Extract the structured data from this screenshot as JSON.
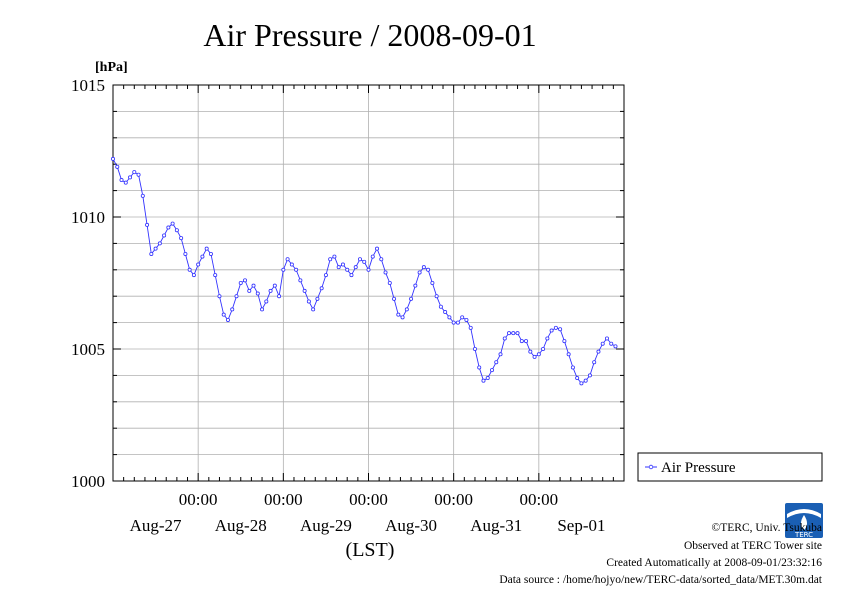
{
  "chart_data": {
    "type": "line",
    "title": "Air Pressure / 2008-09-01",
    "ylabel": "[hPa]",
    "xlabel": "(LST)",
    "ylim": [
      1000,
      1015
    ],
    "xlim": [
      0,
      6
    ],
    "yticks": [
      1000,
      1005,
      1010,
      1015
    ],
    "ytick_labels": [
      "1000",
      "1005",
      "1010",
      "1015"
    ],
    "x_minor_ticks": [
      1,
      2,
      3,
      4,
      5
    ],
    "x_minor_labels": [
      "00:00",
      "00:00",
      "00:00",
      "00:00",
      "00:00"
    ],
    "x_day_labels": [
      "Aug-27",
      "Aug-28",
      "Aug-29",
      "Aug-30",
      "Aug-31",
      "Sep-01"
    ],
    "grid": true,
    "legend": {
      "position": "right",
      "entries": [
        "Air Pressure"
      ]
    },
    "series": [
      {
        "name": "Air Pressure",
        "color": "#3333ff",
        "marker": "circle-open",
        "points": [
          [
            0.0,
            1012.2
          ],
          [
            0.05,
            1011.9
          ],
          [
            0.1,
            1011.4
          ],
          [
            0.15,
            1011.3
          ],
          [
            0.2,
            1011.5
          ],
          [
            0.25,
            1011.7
          ],
          [
            0.3,
            1011.6
          ],
          [
            0.35,
            1010.8
          ],
          [
            0.4,
            1009.7
          ],
          [
            0.45,
            1008.6
          ],
          [
            0.5,
            1008.8
          ],
          [
            0.55,
            1009.0
          ],
          [
            0.6,
            1009.3
          ],
          [
            0.65,
            1009.6
          ],
          [
            0.7,
            1009.75
          ],
          [
            0.75,
            1009.5
          ],
          [
            0.8,
            1009.2
          ],
          [
            0.85,
            1008.6
          ],
          [
            0.9,
            1008.0
          ],
          [
            0.95,
            1007.8
          ],
          [
            1.0,
            1008.2
          ],
          [
            1.05,
            1008.5
          ],
          [
            1.1,
            1008.8
          ],
          [
            1.15,
            1008.6
          ],
          [
            1.2,
            1007.8
          ],
          [
            1.25,
            1007.0
          ],
          [
            1.3,
            1006.3
          ],
          [
            1.35,
            1006.1
          ],
          [
            1.4,
            1006.5
          ],
          [
            1.45,
            1007.0
          ],
          [
            1.5,
            1007.5
          ],
          [
            1.55,
            1007.6
          ],
          [
            1.6,
            1007.2
          ],
          [
            1.65,
            1007.4
          ],
          [
            1.7,
            1007.1
          ],
          [
            1.75,
            1006.5
          ],
          [
            1.8,
            1006.8
          ],
          [
            1.85,
            1007.2
          ],
          [
            1.9,
            1007.4
          ],
          [
            1.95,
            1007.0
          ],
          [
            2.0,
            1008.0
          ],
          [
            2.05,
            1008.4
          ],
          [
            2.1,
            1008.2
          ],
          [
            2.15,
            1008.0
          ],
          [
            2.2,
            1007.6
          ],
          [
            2.25,
            1007.2
          ],
          [
            2.3,
            1006.8
          ],
          [
            2.35,
            1006.5
          ],
          [
            2.4,
            1006.9
          ],
          [
            2.45,
            1007.3
          ],
          [
            2.5,
            1007.8
          ],
          [
            2.55,
            1008.4
          ],
          [
            2.6,
            1008.5
          ],
          [
            2.65,
            1008.1
          ],
          [
            2.7,
            1008.2
          ],
          [
            2.75,
            1008.0
          ],
          [
            2.8,
            1007.8
          ],
          [
            2.85,
            1008.1
          ],
          [
            2.9,
            1008.4
          ],
          [
            2.95,
            1008.3
          ],
          [
            3.0,
            1008.0
          ],
          [
            3.05,
            1008.5
          ],
          [
            3.1,
            1008.8
          ],
          [
            3.15,
            1008.4
          ],
          [
            3.2,
            1007.9
          ],
          [
            3.25,
            1007.5
          ],
          [
            3.3,
            1006.9
          ],
          [
            3.35,
            1006.3
          ],
          [
            3.4,
            1006.2
          ],
          [
            3.45,
            1006.5
          ],
          [
            3.5,
            1006.9
          ],
          [
            3.55,
            1007.4
          ],
          [
            3.6,
            1007.9
          ],
          [
            3.65,
            1008.1
          ],
          [
            3.7,
            1008.0
          ],
          [
            3.75,
            1007.5
          ],
          [
            3.8,
            1007.0
          ],
          [
            3.85,
            1006.6
          ],
          [
            3.9,
            1006.4
          ],
          [
            3.95,
            1006.2
          ],
          [
            4.0,
            1006.0
          ],
          [
            4.05,
            1006.0
          ],
          [
            4.1,
            1006.2
          ],
          [
            4.15,
            1006.1
          ],
          [
            4.2,
            1005.8
          ],
          [
            4.25,
            1005.0
          ],
          [
            4.3,
            1004.3
          ],
          [
            4.35,
            1003.8
          ],
          [
            4.4,
            1003.9
          ],
          [
            4.45,
            1004.2
          ],
          [
            4.5,
            1004.5
          ],
          [
            4.55,
            1004.8
          ],
          [
            4.6,
            1005.4
          ],
          [
            4.65,
            1005.6
          ],
          [
            4.7,
            1005.6
          ],
          [
            4.75,
            1005.6
          ],
          [
            4.8,
            1005.3
          ],
          [
            4.85,
            1005.3
          ],
          [
            4.9,
            1004.9
          ],
          [
            4.95,
            1004.7
          ],
          [
            5.0,
            1004.8
          ],
          [
            5.05,
            1005.0
          ],
          [
            5.1,
            1005.4
          ],
          [
            5.15,
            1005.7
          ],
          [
            5.2,
            1005.8
          ],
          [
            5.25,
            1005.75
          ],
          [
            5.3,
            1005.3
          ],
          [
            5.35,
            1004.8
          ],
          [
            5.4,
            1004.3
          ],
          [
            5.45,
            1003.9
          ],
          [
            5.5,
            1003.7
          ],
          [
            5.55,
            1003.8
          ],
          [
            5.6,
            1004.0
          ],
          [
            5.65,
            1004.5
          ],
          [
            5.7,
            1004.9
          ],
          [
            5.75,
            1005.2
          ],
          [
            5.8,
            1005.4
          ],
          [
            5.85,
            1005.2
          ],
          [
            5.9,
            1005.1
          ]
        ]
      }
    ]
  },
  "footer": {
    "copyright": "©TERC, Univ. Tsukuba",
    "observed": "Observed at TERC Tower site",
    "created": "Created Automatically at 2008-09-01/23:32:16",
    "source": "Data source : /home/hojyo/new/TERC-data/sorted_data/MET.30m.dat",
    "logo_text": "TERC"
  },
  "colors": {
    "series": "#3333ff",
    "grid": "#b0b0b0",
    "logo_blue": "#1a5fb4"
  }
}
